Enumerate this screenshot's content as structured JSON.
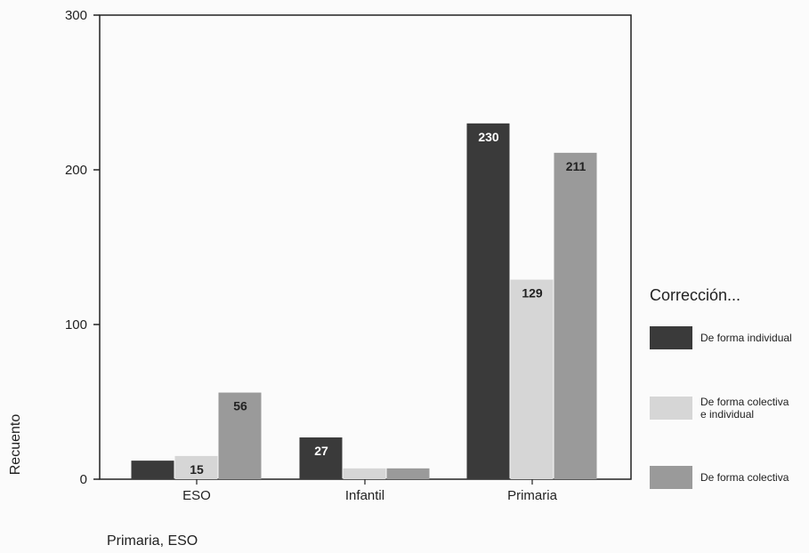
{
  "chart_data": {
    "type": "bar",
    "categories": [
      "ESO",
      "Infantil",
      "Primaria"
    ],
    "series": [
      {
        "name": "De forma individual",
        "values": [
          12,
          27,
          230
        ],
        "color": "#3a3a3a"
      },
      {
        "name": "De forma colectiva e individual",
        "values": [
          15,
          7,
          129
        ],
        "color": "#d6d6d6"
      },
      {
        "name": "De forma colectiva",
        "values": [
          56,
          7,
          211
        ],
        "color": "#9a9a9a"
      }
    ],
    "data_labels": [
      [
        null,
        "15",
        "56"
      ],
      [
        "27",
        null,
        null
      ],
      [
        "230",
        "129",
        "211"
      ]
    ],
    "ylim": [
      0,
      300
    ],
    "yticks": [
      0,
      100,
      200,
      300
    ],
    "ylabel": "Recuento",
    "xlabel": "Primaria, ESO",
    "legend": {
      "title": "Corrección...",
      "position": "right"
    },
    "grid": false
  }
}
